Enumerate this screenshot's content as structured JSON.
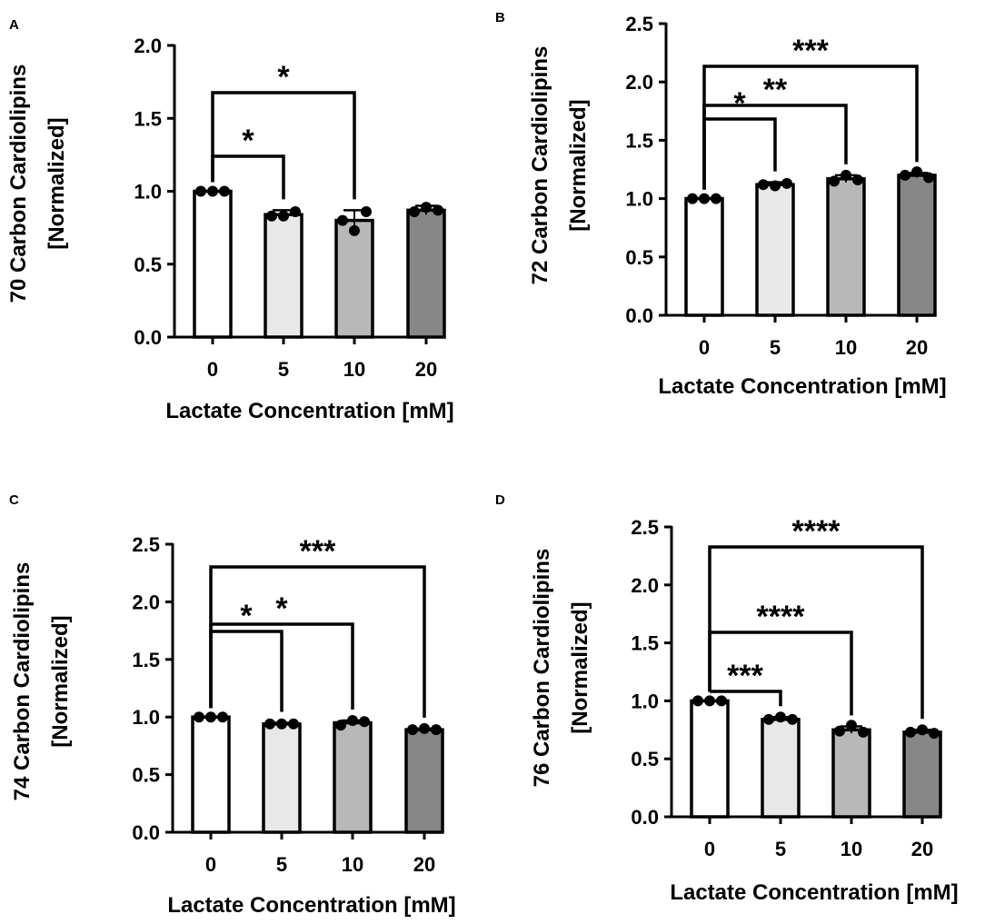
{
  "chart_data": [
    {
      "panel": "A",
      "type": "bar",
      "categories": [
        "0",
        "5",
        "10",
        "20"
      ],
      "values": [
        1.0,
        0.84,
        0.8,
        0.87
      ],
      "errors": [
        0.0,
        0.03,
        0.07,
        0.03
      ],
      "points": [
        [
          1.0,
          1.0,
          1.0
        ],
        [
          0.83,
          0.83,
          0.86
        ],
        [
          0.8,
          0.73,
          0.86
        ],
        [
          0.86,
          0.89,
          0.87
        ]
      ],
      "bar_colors": [
        "#ffffff",
        "#e8e8e8",
        "#b8b8b8",
        "#878787"
      ],
      "title": "",
      "xlabel": "Lactate Concentration [mM]",
      "ylabel": [
        "70 Carbon Cardiolipins",
        "[Normalized]"
      ],
      "ylim": [
        0,
        2.0
      ],
      "yticks": [
        "0.0",
        "0.5",
        "1.0",
        "1.5",
        "2.0"
      ],
      "significance": [
        {
          "from": 0,
          "to": 1,
          "label": "*"
        },
        {
          "from": 0,
          "to": 2,
          "label": "*"
        }
      ]
    },
    {
      "panel": "B",
      "type": "bar",
      "categories": [
        "0",
        "5",
        "10",
        "20"
      ],
      "values": [
        1.0,
        1.12,
        1.17,
        1.2
      ],
      "errors": [
        0.0,
        0.02,
        0.03,
        0.02
      ],
      "points": [
        [
          1.0,
          1.0,
          1.0
        ],
        [
          1.12,
          1.11,
          1.13
        ],
        [
          1.15,
          1.2,
          1.16
        ],
        [
          1.2,
          1.23,
          1.18
        ]
      ],
      "bar_colors": [
        "#ffffff",
        "#e8e8e8",
        "#b8b8b8",
        "#878787"
      ],
      "title": "",
      "xlabel": "Lactate Concentration [mM]",
      "ylabel": [
        "72 Carbon Cardiolipins",
        "[Normalized]"
      ],
      "ylim": [
        0,
        2.5
      ],
      "yticks": [
        "0.0",
        "0.5",
        "1.0",
        "1.5",
        "2.0",
        "2.5"
      ],
      "significance": [
        {
          "from": 0,
          "to": 1,
          "label": "*"
        },
        {
          "from": 0,
          "to": 2,
          "label": "**"
        },
        {
          "from": 0,
          "to": 3,
          "label": "***"
        }
      ]
    },
    {
      "panel": "C",
      "type": "bar",
      "categories": [
        "0",
        "5",
        "10",
        "20"
      ],
      "values": [
        1.0,
        0.94,
        0.95,
        0.89
      ],
      "errors": [
        0.0,
        0.01,
        0.02,
        0.01
      ],
      "points": [
        [
          1.0,
          1.0,
          1.0
        ],
        [
          0.94,
          0.94,
          0.94
        ],
        [
          0.93,
          0.97,
          0.96
        ],
        [
          0.89,
          0.9,
          0.89
        ]
      ],
      "bar_colors": [
        "#ffffff",
        "#e8e8e8",
        "#b8b8b8",
        "#878787"
      ],
      "title": "",
      "xlabel": "Lactate Concentration [mM]",
      "ylabel": [
        "74 Carbon Cardiolipins",
        "[Normalized]"
      ],
      "ylim": [
        0,
        2.5
      ],
      "yticks": [
        "0.0",
        "0.5",
        "1.0",
        "1.5",
        "2.0",
        "2.5"
      ],
      "significance": [
        {
          "from": 0,
          "to": 1,
          "label": "*"
        },
        {
          "from": 0,
          "to": 2,
          "label": "*"
        },
        {
          "from": 0,
          "to": 3,
          "label": "***"
        }
      ]
    },
    {
      "panel": "D",
      "type": "bar",
      "categories": [
        "0",
        "5",
        "10",
        "20"
      ],
      "values": [
        1.0,
        0.84,
        0.75,
        0.73
      ],
      "errors": [
        0.0,
        0.02,
        0.03,
        0.02
      ],
      "points": [
        [
          1.0,
          1.0,
          1.0
        ],
        [
          0.84,
          0.86,
          0.84
        ],
        [
          0.74,
          0.79,
          0.73
        ],
        [
          0.73,
          0.75,
          0.72
        ]
      ],
      "bar_colors": [
        "#ffffff",
        "#e8e8e8",
        "#b8b8b8",
        "#878787"
      ],
      "title": "",
      "xlabel": "Lactate Concentration [mM]",
      "ylabel": [
        "76 Carbon Cardiolipins",
        "[Normalized]"
      ],
      "ylim": [
        0,
        2.5
      ],
      "yticks": [
        "0.0",
        "0.5",
        "1.0",
        "1.5",
        "2.0",
        "2.5"
      ],
      "significance": [
        {
          "from": 0,
          "to": 1,
          "label": "***"
        },
        {
          "from": 0,
          "to": 2,
          "label": "****"
        },
        {
          "from": 0,
          "to": 3,
          "label": "****"
        }
      ]
    }
  ]
}
